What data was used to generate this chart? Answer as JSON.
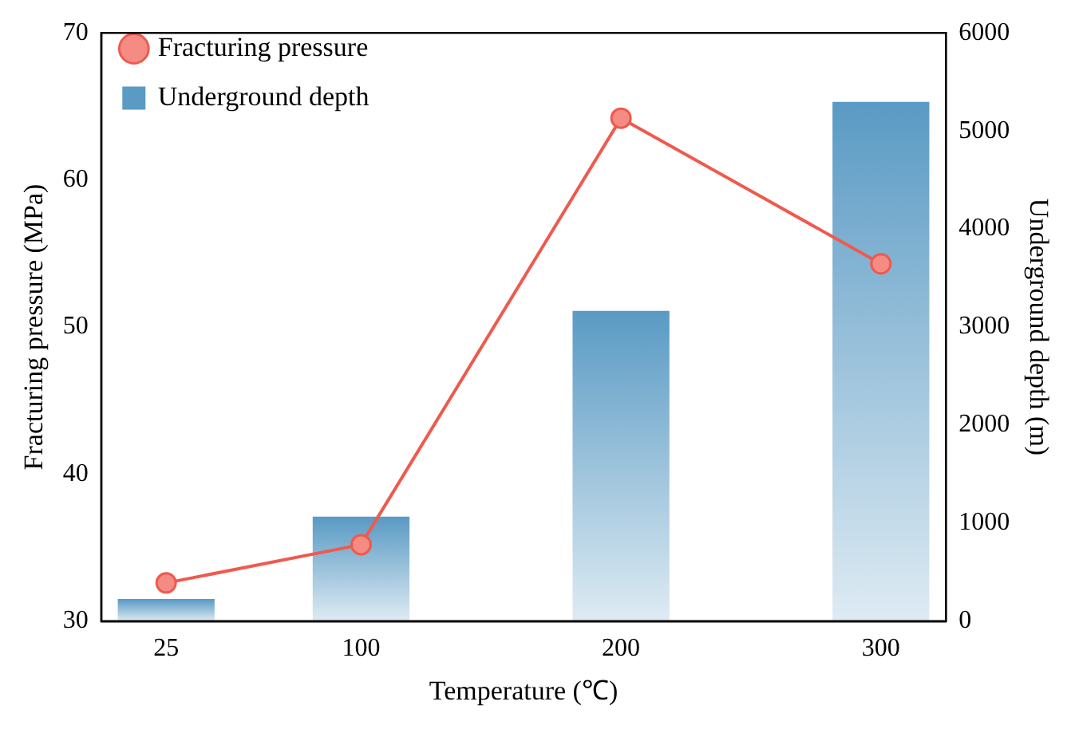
{
  "chart_data": {
    "type": "bar",
    "xlabel": "Temperature (℃)",
    "ylabel": "Fracturing pressure (MPa)",
    "y2label": "Underground depth (m)",
    "x": [
      25,
      100,
      200,
      300
    ],
    "series": [
      {
        "name": "Fracturing pressure",
        "type": "line",
        "color": "#ef5a4e",
        "values": [
          32.6,
          35.2,
          64.2,
          54.3
        ],
        "marker": "circle",
        "line_style": "solid"
      },
      {
        "name": "Underground depth",
        "color": "#5a9ac4",
        "axis": "y2",
        "values": [
          220,
          1060,
          3160,
          5290
        ]
      }
    ],
    "xlim": [
      0,
      325
    ],
    "xticks": [
      25,
      100,
      200,
      300
    ],
    "ylim": [
      30,
      70
    ],
    "yticks": [
      30,
      40,
      50,
      60,
      70
    ],
    "y2lim": [
      0,
      6000
    ],
    "y2ticks": [
      0,
      1000,
      2000,
      3000,
      4000,
      5000,
      6000
    ],
    "grid": false,
    "legend": "top left"
  }
}
